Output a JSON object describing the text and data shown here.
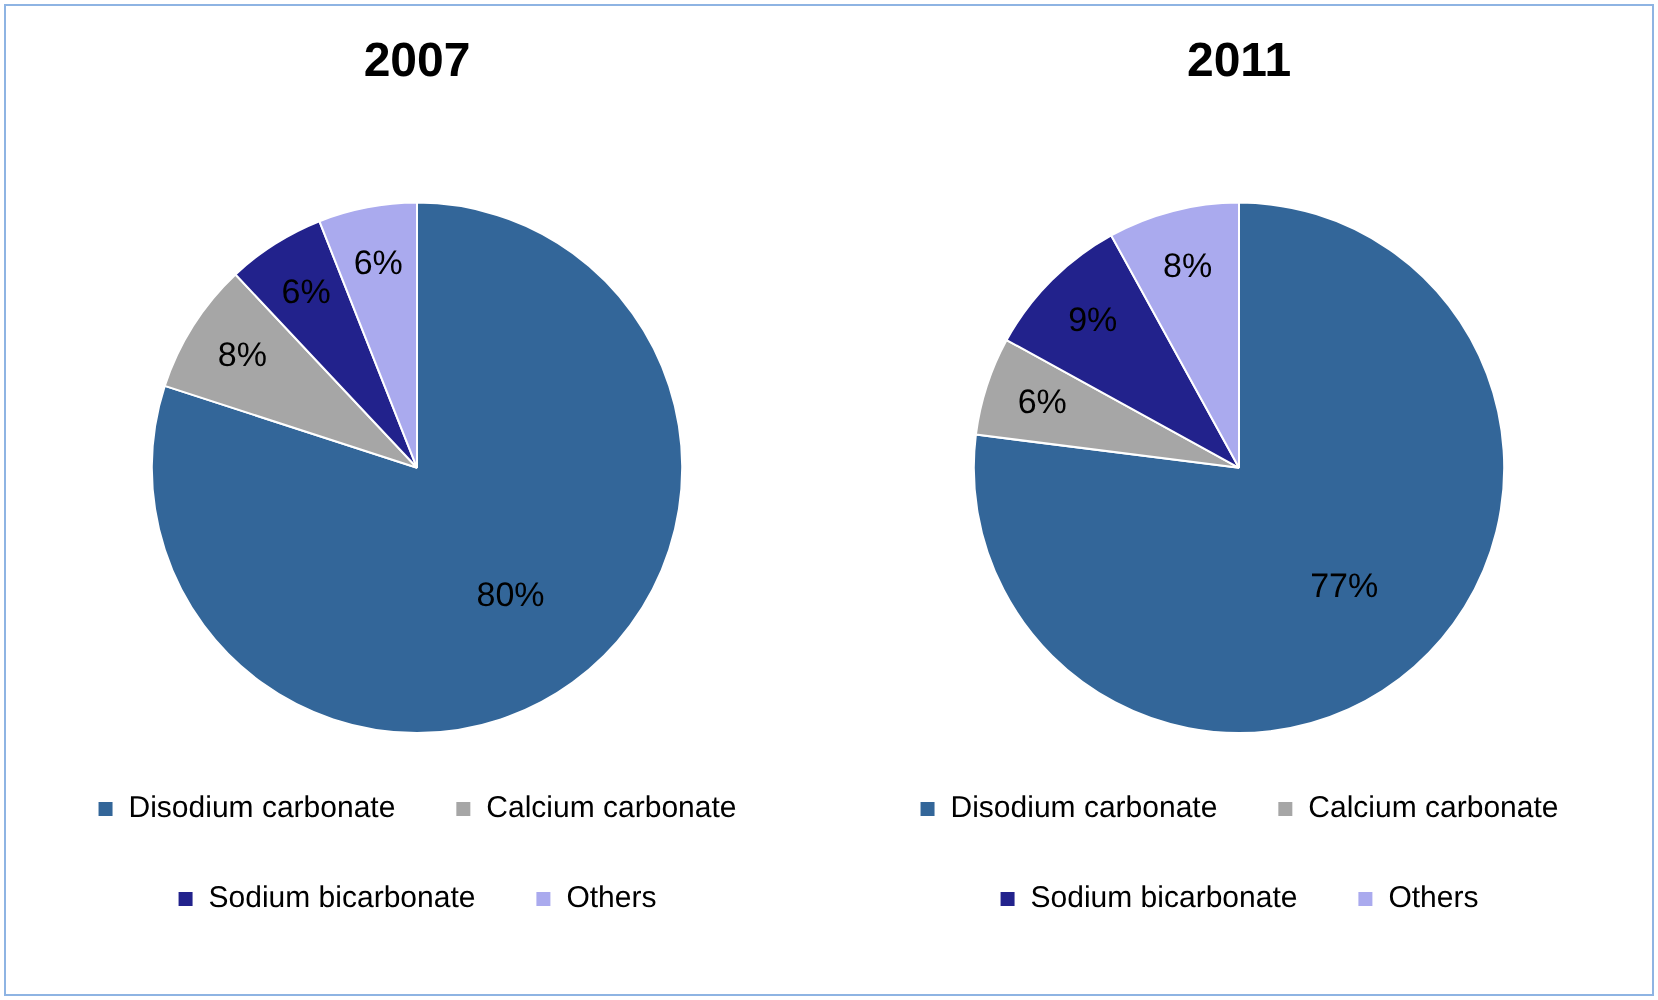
{
  "chart_data": [
    {
      "type": "pie",
      "title": "2007",
      "categories": [
        "Disodium carbonate",
        "Calcium carbonate",
        "Sodium bicarbonate",
        "Others"
      ],
      "values": [
        80,
        8,
        6,
        6
      ],
      "colors": [
        "#336699",
        "#a6a6a6",
        "#22228c",
        "#aaaaee"
      ],
      "value_labels": [
        "80%",
        "8%",
        "6%",
        "6%"
      ],
      "legend": "bottom"
    },
    {
      "type": "pie",
      "title": "2011",
      "categories": [
        "Disodium carbonate",
        "Calcium carbonate",
        "Sodium bicarbonate",
        "Others"
      ],
      "values": [
        77,
        6,
        9,
        8
      ],
      "colors": [
        "#336699",
        "#a6a6a6",
        "#22228c",
        "#aaaaee"
      ],
      "value_labels": [
        "77%",
        "6%",
        "9%",
        "8%"
      ],
      "legend": "bottom"
    }
  ]
}
